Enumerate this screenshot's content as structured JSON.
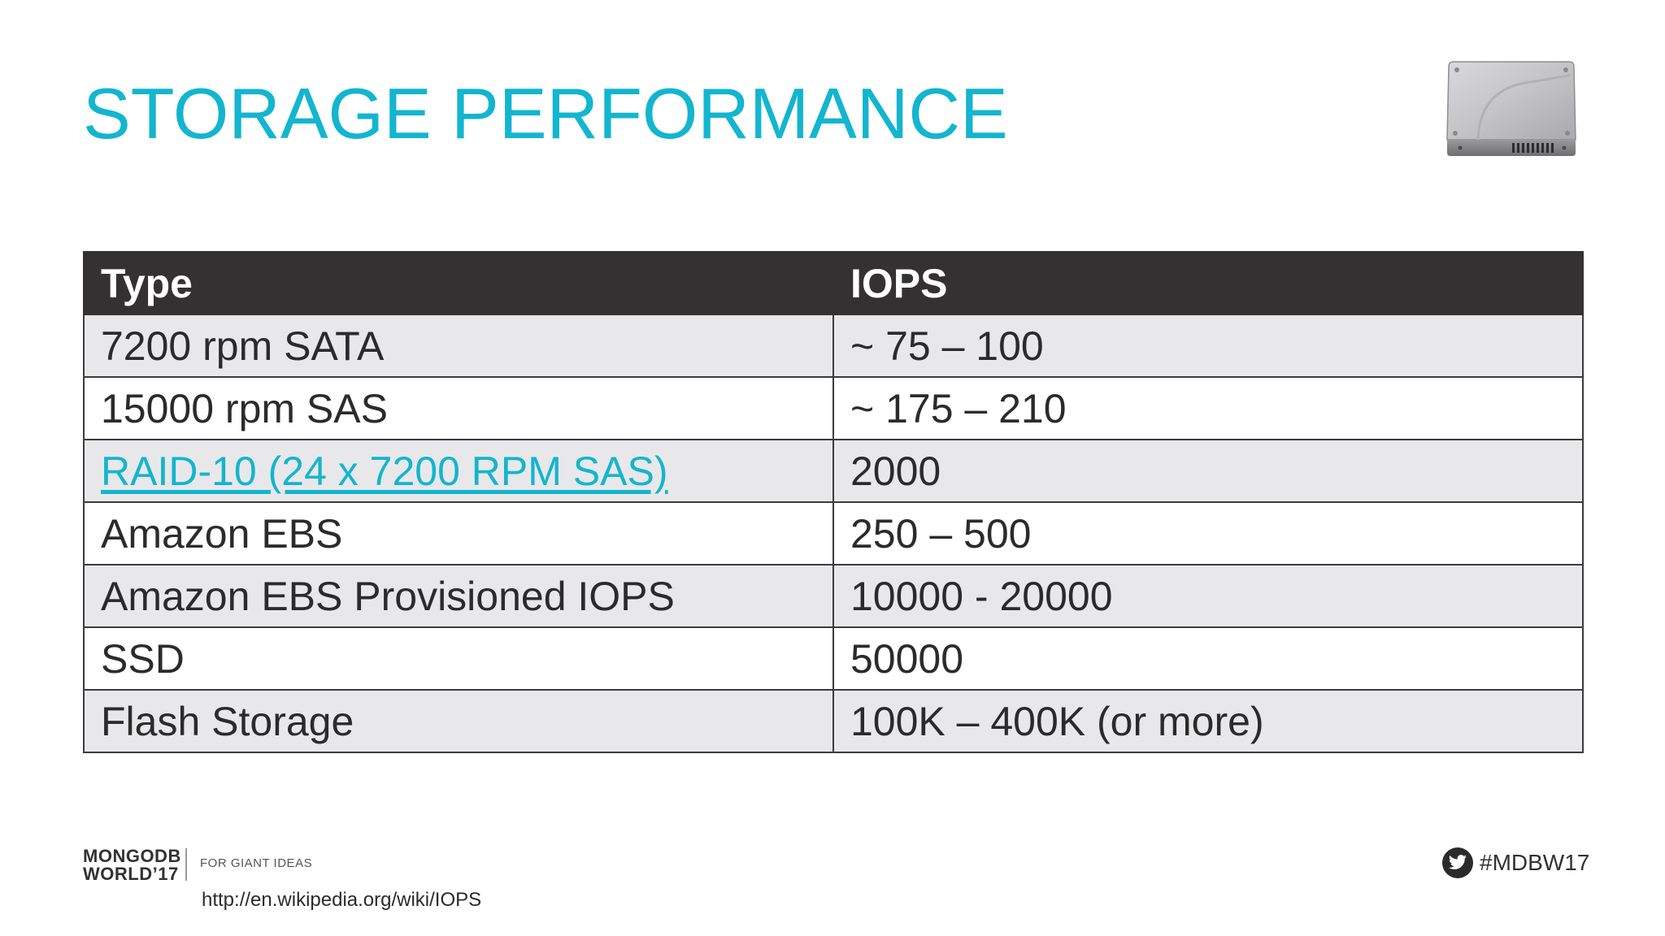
{
  "slide": {
    "title": "STORAGE PERFORMANCE",
    "icon": "hard-drive-icon",
    "accent_color": "#13b5cf",
    "header_color": "#333132"
  },
  "table": {
    "headers": [
      "Type",
      "IOPS"
    ],
    "rows": [
      {
        "type": "7200 rpm SATA",
        "iops": "~ 75 – 100",
        "link": false
      },
      {
        "type": "15000 rpm SAS",
        "iops": "~ 175 – 210",
        "link": false
      },
      {
        "type": "RAID-10 (24 x 7200 RPM SAS)",
        "iops": "2000",
        "link": true
      },
      {
        "type": "Amazon EBS",
        "iops": "250 – 500",
        "link": false
      },
      {
        "type": "Amazon EBS Provisioned IOPS",
        "iops": "10000 - 20000",
        "link": false
      },
      {
        "type": "SSD",
        "iops": "50000",
        "link": false
      },
      {
        "type": "Flash Storage",
        "iops": "100K – 400K (or more)",
        "link": false
      }
    ]
  },
  "footer": {
    "logo_line1": "MONGODB",
    "logo_line2": "WORLD’17",
    "tagline": "FOR GIANT IDEAS",
    "source_url": "http://en.wikipedia.org/wiki/IOPS",
    "hashtag": "#MDBW17",
    "hashtag_icon": "twitter-icon"
  }
}
